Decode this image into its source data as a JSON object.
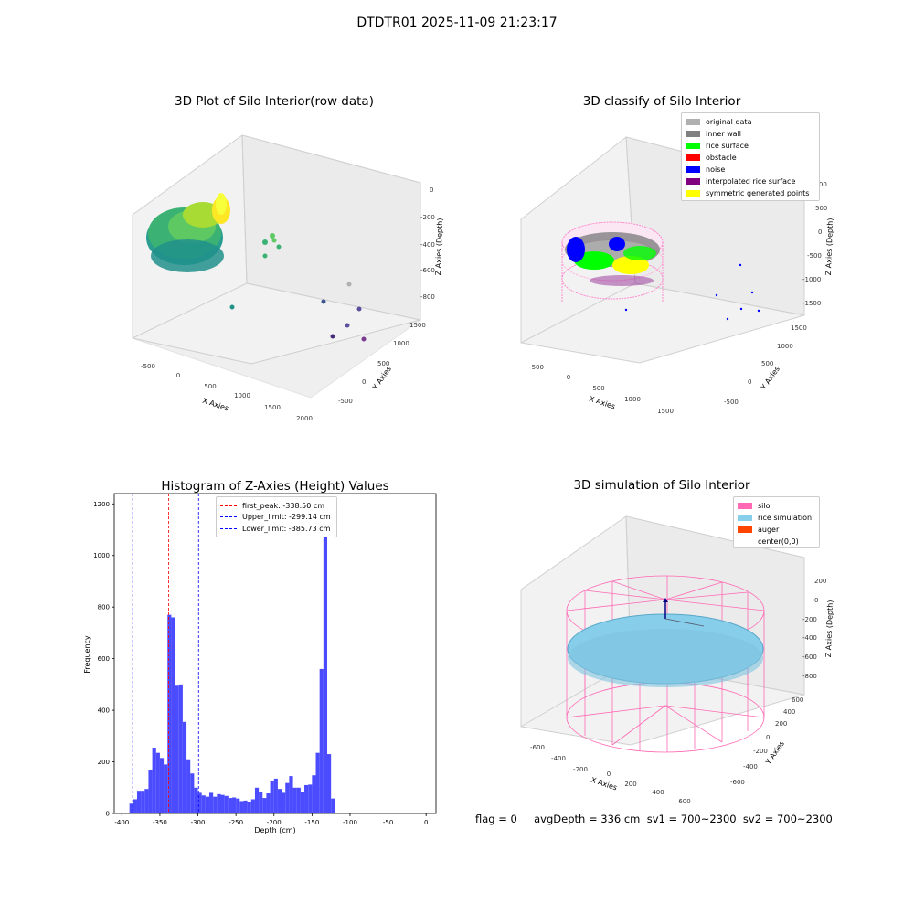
{
  "figure": {
    "suptitle": "DTDTR01 2025-11-09 21:23:17"
  },
  "plot_tl": {
    "title": "3D Plot of Silo Interior(row data)",
    "xlabel": "X Axies",
    "ylabel": "Y Axies",
    "zlabel": "Z Axies (Depth)",
    "xticks": [
      "-500",
      "0",
      "500",
      "1000",
      "1500",
      "2000"
    ],
    "yticks": [
      "-500",
      "0",
      "500",
      "1000",
      "1500"
    ],
    "zticks": [
      "0",
      "-200",
      "-400",
      "-600",
      "-800"
    ],
    "colormap": [
      "#440154",
      "#3b528b",
      "#21918c",
      "#5ec962",
      "#fde725"
    ]
  },
  "plot_tr": {
    "title": "3D classify of Silo Interior",
    "xlabel": "X Axies",
    "ylabel": "Y Axies",
    "zlabel": "Z Axies (Depth)",
    "xticks": [
      "-500",
      "0",
      "500",
      "1000",
      "1500"
    ],
    "yticks": [
      "-500",
      "0",
      "500",
      "1000",
      "1500"
    ],
    "zticks": [
      "1000",
      "500",
      "0",
      "-500",
      "-1000",
      "-1500"
    ],
    "legend": [
      {
        "label": "original data",
        "color": "#b0b0b0"
      },
      {
        "label": "inner wall",
        "color": "#808080"
      },
      {
        "label": "rice surface",
        "color": "#00ff00"
      },
      {
        "label": "obstacle",
        "color": "#ff0000"
      },
      {
        "label": "noise",
        "color": "#0000ff"
      },
      {
        "label": "interpolated rice surface",
        "color": "#800080"
      },
      {
        "label": "symmetric generated points",
        "color": "#ffff00"
      }
    ]
  },
  "plot_br": {
    "title": "3D simulation of Silo Interior",
    "xlabel": "X Axies",
    "ylabel": "Y Axies",
    "zlabel": "Z Axies (Depth)",
    "xticks": [
      "-600",
      "-400",
      "-200",
      "0",
      "200",
      "400",
      "600"
    ],
    "yticks": [
      "-600",
      "-400",
      "-200",
      "0",
      "200",
      "400",
      "600"
    ],
    "zticks": [
      "200",
      "0",
      "-200",
      "-400",
      "-600",
      "-800"
    ],
    "legend": [
      {
        "label": "silo",
        "color": "#ff69b4"
      },
      {
        "label": "rice simulation",
        "color": "#87ceeb"
      },
      {
        "label": "auger",
        "color": "#ff4500"
      },
      {
        "label": "center(0,0)",
        "color": "#ffffff"
      }
    ]
  },
  "status": {
    "text": "flag = 0     avgDepth = 336 cm  sv1 = 700~2300  sv2 = 700~2300"
  },
  "chart_data": {
    "type": "bar",
    "title": "Histogram of Z-Axies (Height) Values",
    "xlabel": "Depth (cm)",
    "ylabel": "Frequency",
    "xlim": [
      -410,
      13
    ],
    "ylim": [
      0,
      1240
    ],
    "xticks": [
      -400,
      -350,
      -300,
      -250,
      -200,
      -150,
      -100,
      -50,
      0
    ],
    "yticks": [
      0,
      200,
      400,
      600,
      800,
      1000,
      1200
    ],
    "bar_color": "#4b4bff",
    "bins": [
      [
        -390,
        -385,
        38
      ],
      [
        -385,
        -380,
        55
      ],
      [
        -380,
        -375,
        88
      ],
      [
        -375,
        -370,
        88
      ],
      [
        -370,
        -365,
        95
      ],
      [
        -365,
        -360,
        170
      ],
      [
        -360,
        -355,
        255
      ],
      [
        -355,
        -350,
        235
      ],
      [
        -350,
        -345,
        215
      ],
      [
        -345,
        -340,
        190
      ],
      [
        -340,
        -335,
        770
      ],
      [
        -335,
        -330,
        760
      ],
      [
        -330,
        -325,
        495
      ],
      [
        -325,
        -320,
        500
      ],
      [
        -320,
        -315,
        355
      ],
      [
        -315,
        -310,
        210
      ],
      [
        -310,
        -305,
        155
      ],
      [
        -305,
        -300,
        100
      ],
      [
        -300,
        -295,
        80
      ],
      [
        -295,
        -290,
        70
      ],
      [
        -290,
        -285,
        65
      ],
      [
        -285,
        -280,
        80
      ],
      [
        -280,
        -275,
        65
      ],
      [
        -275,
        -270,
        75
      ],
      [
        -270,
        -265,
        72
      ],
      [
        -265,
        -260,
        68
      ],
      [
        -260,
        -255,
        60
      ],
      [
        -255,
        -250,
        62
      ],
      [
        -250,
        -245,
        58
      ],
      [
        -245,
        -240,
        48
      ],
      [
        -240,
        -235,
        50
      ],
      [
        -235,
        -230,
        45
      ],
      [
        -230,
        -225,
        55
      ],
      [
        -225,
        -220,
        100
      ],
      [
        -220,
        -215,
        85
      ],
      [
        -215,
        -210,
        60
      ],
      [
        -210,
        -205,
        78
      ],
      [
        -205,
        -200,
        125
      ],
      [
        -200,
        -195,
        135
      ],
      [
        -195,
        -190,
        95
      ],
      [
        -190,
        -185,
        80
      ],
      [
        -185,
        -180,
        118
      ],
      [
        -180,
        -175,
        145
      ],
      [
        -175,
        -170,
        100
      ],
      [
        -170,
        -165,
        100
      ],
      [
        -165,
        -160,
        85
      ],
      [
        -160,
        -155,
        110
      ],
      [
        -155,
        -150,
        112
      ],
      [
        -150,
        -145,
        148
      ],
      [
        -145,
        -140,
        235
      ],
      [
        -140,
        -135,
        560
      ],
      [
        -135,
        -130,
        1180
      ],
      [
        -130,
        -125,
        230
      ],
      [
        -125,
        -120,
        58
      ],
      [
        -120,
        -115,
        0
      ],
      [
        -115,
        -110,
        0
      ],
      [
        -110,
        -105,
        0
      ],
      [
        -105,
        -100,
        0
      ],
      [
        -100,
        -95,
        0
      ],
      [
        -95,
        -90,
        0
      ],
      [
        -90,
        -85,
        0
      ],
      [
        -85,
        -80,
        0
      ],
      [
        -80,
        -75,
        0
      ],
      [
        -75,
        -70,
        0
      ],
      [
        -70,
        -65,
        0
      ],
      [
        -65,
        -60,
        0
      ],
      [
        -60,
        -55,
        0
      ],
      [
        -55,
        -50,
        0
      ],
      [
        -50,
        -45,
        0
      ],
      [
        -45,
        -40,
        0
      ],
      [
        -40,
        -35,
        0
      ],
      [
        -35,
        -30,
        0
      ],
      [
        -30,
        -25,
        0
      ],
      [
        -25,
        -20,
        0
      ],
      [
        -20,
        -15,
        0
      ],
      [
        -15,
        -10,
        0
      ],
      [
        -10,
        -5,
        0
      ],
      [
        -5,
        0,
        0
      ],
      [
        0,
        5,
        0
      ]
    ],
    "vlines": [
      {
        "x": -338.5,
        "color": "#ff0000",
        "label": "first_peak: -338.50 cm"
      },
      {
        "x": -299.14,
        "color": "#0000ff",
        "label": "Upper_limit: -299.14 cm"
      },
      {
        "x": -385.73,
        "color": "#0000ff",
        "label": "Lower_limit: -385.73 cm"
      }
    ],
    "legend_position": "upper-center"
  }
}
